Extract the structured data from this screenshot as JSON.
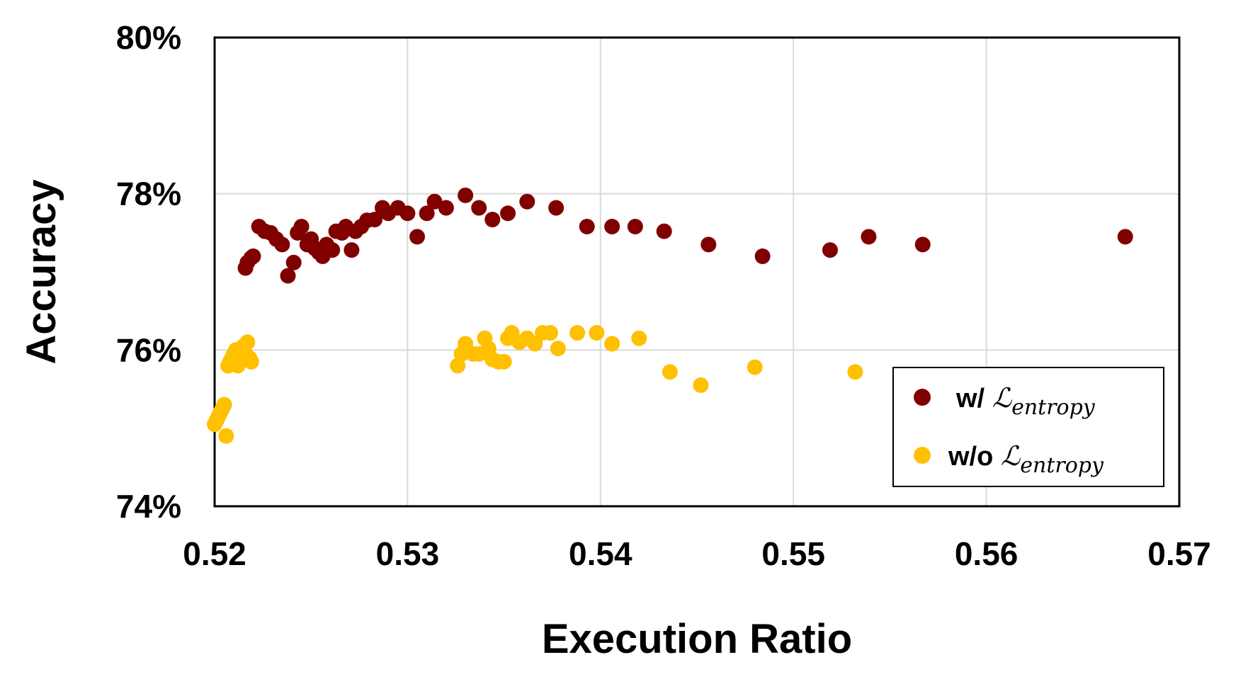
{
  "chart_data": {
    "type": "scatter",
    "xlabel": "Execution Ratio",
    "ylabel": "Accuracy",
    "xlim": [
      0.52,
      0.57
    ],
    "ylim": [
      74,
      80
    ],
    "x_ticks": [
      "0.52",
      "0.53",
      "0.54",
      "0.55",
      "0.56",
      "0.57"
    ],
    "y_ticks": [
      "74%",
      "76%",
      "78%",
      "80%"
    ],
    "grid": true,
    "legend_position": "bottom-right",
    "series": [
      {
        "name_prefix": "w/ ",
        "name_symbol": "ℒ",
        "name_subscript": "entropy",
        "color": "#800000",
        "points": [
          [
            0.5216,
            77.05
          ],
          [
            0.5217,
            77.12
          ],
          [
            0.5219,
            77.18
          ],
          [
            0.522,
            77.2
          ],
          [
            0.5223,
            77.58
          ],
          [
            0.5226,
            77.52
          ],
          [
            0.5229,
            77.5
          ],
          [
            0.5232,
            77.42
          ],
          [
            0.5235,
            77.35
          ],
          [
            0.5238,
            76.95
          ],
          [
            0.5241,
            77.12
          ],
          [
            0.5243,
            77.5
          ],
          [
            0.5245,
            77.58
          ],
          [
            0.5248,
            77.35
          ],
          [
            0.525,
            77.42
          ],
          [
            0.5252,
            77.3
          ],
          [
            0.5254,
            77.25
          ],
          [
            0.5256,
            77.2
          ],
          [
            0.5258,
            77.35
          ],
          [
            0.5261,
            77.28
          ],
          [
            0.5263,
            77.52
          ],
          [
            0.5266,
            77.5
          ],
          [
            0.5268,
            77.58
          ],
          [
            0.5271,
            77.28
          ],
          [
            0.5273,
            77.52
          ],
          [
            0.5276,
            77.58
          ],
          [
            0.5279,
            77.66
          ],
          [
            0.5283,
            77.67
          ],
          [
            0.5287,
            77.82
          ],
          [
            0.529,
            77.75
          ],
          [
            0.5295,
            77.82
          ],
          [
            0.53,
            77.75
          ],
          [
            0.5305,
            77.45
          ],
          [
            0.531,
            77.75
          ],
          [
            0.5314,
            77.9
          ],
          [
            0.532,
            77.82
          ],
          [
            0.533,
            77.98
          ],
          [
            0.5337,
            77.82
          ],
          [
            0.5344,
            77.67
          ],
          [
            0.5352,
            77.75
          ],
          [
            0.5362,
            77.9
          ],
          [
            0.5377,
            77.82
          ],
          [
            0.5393,
            77.58
          ],
          [
            0.5406,
            77.58
          ],
          [
            0.5418,
            77.58
          ],
          [
            0.5433,
            77.52
          ],
          [
            0.5456,
            77.35
          ],
          [
            0.5484,
            77.2
          ],
          [
            0.5519,
            77.28
          ],
          [
            0.5539,
            77.45
          ],
          [
            0.5567,
            77.35
          ],
          [
            0.5672,
            77.45
          ]
        ]
      },
      {
        "name_prefix": "w/o ",
        "name_symbol": "ℒ",
        "name_subscript": "entropy",
        "color": "#FFC000",
        "points": [
          [
            0.52,
            75.05
          ],
          [
            0.5201,
            75.1
          ],
          [
            0.5202,
            75.15
          ],
          [
            0.5203,
            75.2
          ],
          [
            0.5204,
            75.25
          ],
          [
            0.5205,
            75.3
          ],
          [
            0.5206,
            74.9
          ],
          [
            0.5207,
            75.8
          ],
          [
            0.5208,
            75.85
          ],
          [
            0.5209,
            75.9
          ],
          [
            0.521,
            75.95
          ],
          [
            0.5211,
            76.0
          ],
          [
            0.5212,
            75.8
          ],
          [
            0.5213,
            75.85
          ],
          [
            0.5214,
            75.9
          ],
          [
            0.5215,
            76.05
          ],
          [
            0.5216,
            75.95
          ],
          [
            0.5217,
            76.1
          ],
          [
            0.5218,
            75.9
          ],
          [
            0.5219,
            75.85
          ],
          [
            0.5326,
            75.8
          ],
          [
            0.5328,
            75.95
          ],
          [
            0.533,
            76.08
          ],
          [
            0.5334,
            75.95
          ],
          [
            0.5337,
            75.95
          ],
          [
            0.534,
            76.15
          ],
          [
            0.5342,
            76.02
          ],
          [
            0.5344,
            75.88
          ],
          [
            0.5347,
            75.85
          ],
          [
            0.535,
            75.85
          ],
          [
            0.5352,
            76.15
          ],
          [
            0.5354,
            76.22
          ],
          [
            0.5358,
            76.1
          ],
          [
            0.5362,
            76.15
          ],
          [
            0.5366,
            76.08
          ],
          [
            0.537,
            76.22
          ],
          [
            0.5374,
            76.22
          ],
          [
            0.5378,
            76.02
          ],
          [
            0.5388,
            76.22
          ],
          [
            0.5398,
            76.22
          ],
          [
            0.5406,
            76.08
          ],
          [
            0.542,
            76.15
          ],
          [
            0.5436,
            75.72
          ],
          [
            0.5452,
            75.55
          ],
          [
            0.548,
            75.78
          ],
          [
            0.5532,
            75.72
          ]
        ]
      }
    ]
  }
}
